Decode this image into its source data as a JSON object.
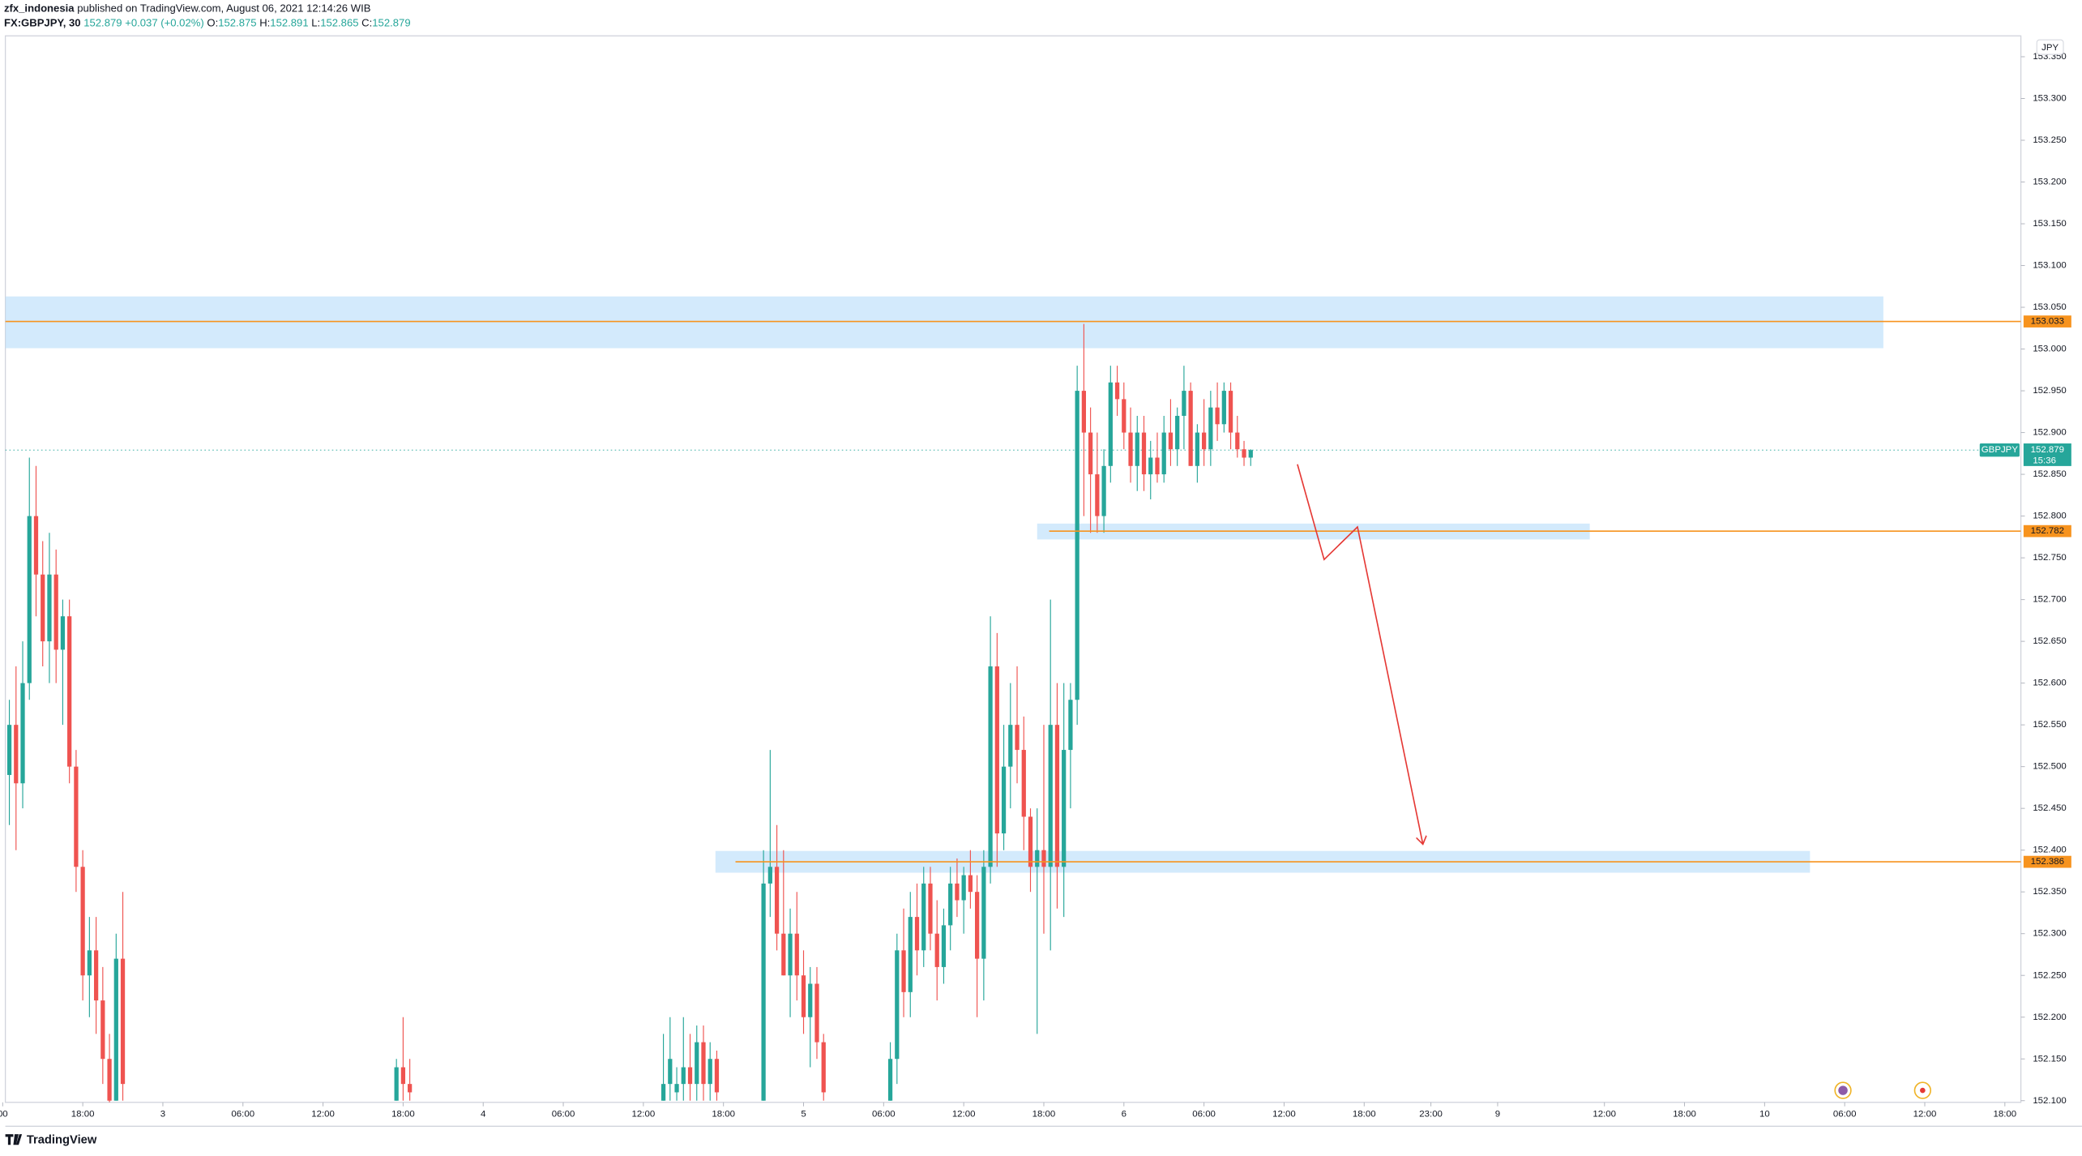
{
  "header": {
    "author": "zfx_indonesia",
    "published": "published on TradingView.com, August 06, 2021 12:14:26 WIB",
    "symbol": "FX:GBPJPY, 30",
    "last": "152.879",
    "change": "+0.037 (+0.02%)",
    "ohlc": [
      {
        "label": "O:",
        "value": "152.875"
      },
      {
        "label": "H:",
        "value": "152.891"
      },
      {
        "label": "L:",
        "value": "152.865"
      },
      {
        "label": "C:",
        "value": "152.879"
      }
    ]
  },
  "footer": {
    "logo": "TradingView"
  },
  "chart_data": {
    "type": "candlestick",
    "currency": "JPY",
    "symbol_label": "GBPJPY",
    "last_price": 152.879,
    "countdown": "15:36",
    "up_color": "#26a69a",
    "down_color": "#ef5350",
    "x": [
      0.5,
      1,
      1.5,
      2,
      2.5,
      3,
      3.5,
      4,
      4.5,
      5,
      5.5,
      6,
      6.5,
      7,
      7.5,
      8,
      8.5,
      9,
      29.5,
      30,
      30.5,
      49.5,
      50,
      50.5,
      51,
      51.5,
      52,
      52.5,
      53,
      53.5,
      57,
      57.5,
      58,
      58.5,
      59,
      59.5,
      60,
      60.5,
      61,
      61.5,
      66.5,
      67,
      67.5,
      68,
      68.5,
      69,
      69.5,
      70,
      70.5,
      71,
      71.5,
      72,
      72.5,
      73,
      73.5,
      74,
      74.5,
      75,
      75.5,
      76,
      76.5,
      77,
      77.5,
      78,
      78.5,
      79,
      79.5,
      80,
      80.5,
      81,
      81.5,
      82,
      82.5,
      83,
      83.5,
      84,
      84.5,
      85,
      85.5,
      86,
      86.5,
      87,
      87.5,
      88,
      88.5,
      89,
      89.5,
      90,
      90.5,
      91,
      91.5,
      92,
      92.5,
      93,
      93.5
    ],
    "open": [
      152.49,
      152.55,
      152.48,
      152.6,
      152.8,
      152.73,
      152.65,
      152.73,
      152.64,
      152.68,
      152.5,
      152.38,
      152.25,
      152.28,
      152.22,
      152.15,
      152.1,
      152.27,
      152.1,
      152.14,
      152.12,
      152.1,
      152.12,
      152.11,
      152.12,
      152.14,
      152.12,
      152.17,
      152.12,
      152.15,
      152.1,
      152.36,
      152.38,
      152.3,
      152.25,
      152.3,
      152.25,
      152.2,
      152.24,
      152.17,
      152.1,
      152.15,
      152.28,
      152.23,
      152.32,
      152.28,
      152.36,
      152.3,
      152.26,
      152.31,
      152.36,
      152.34,
      152.37,
      152.35,
      152.27,
      152.38,
      152.62,
      152.42,
      152.5,
      152.55,
      152.52,
      152.44,
      152.38,
      152.4,
      152.38,
      152.55,
      152.38,
      152.52,
      152.58,
      152.95,
      152.9,
      152.85,
      152.8,
      152.86,
      152.96,
      152.94,
      152.9,
      152.86,
      152.9,
      152.85,
      152.87,
      152.85,
      152.9,
      152.88,
      152.92,
      152.95,
      152.86,
      152.9,
      152.88,
      152.93,
      152.91,
      152.95,
      152.9,
      152.88,
      152.87
    ],
    "high": [
      152.58,
      152.62,
      152.65,
      152.87,
      152.86,
      152.77,
      152.78,
      152.76,
      152.7,
      152.7,
      152.52,
      152.4,
      152.32,
      152.32,
      152.26,
      152.18,
      152.3,
      152.35,
      152.15,
      152.2,
      152.15,
      152.18,
      152.2,
      152.14,
      152.2,
      152.18,
      152.19,
      152.19,
      152.17,
      152.16,
      152.4,
      152.52,
      152.43,
      152.4,
      152.33,
      152.35,
      152.28,
      152.26,
      152.26,
      152.18,
      152.17,
      152.3,
      152.33,
      152.35,
      152.36,
      152.38,
      152.38,
      152.34,
      152.33,
      152.38,
      152.39,
      152.38,
      152.4,
      152.37,
      152.4,
      152.68,
      152.66,
      152.55,
      152.6,
      152.62,
      152.56,
      152.45,
      152.45,
      152.55,
      152.7,
      152.6,
      152.6,
      152.6,
      152.98,
      153.03,
      152.93,
      152.9,
      152.88,
      152.98,
      152.98,
      152.96,
      152.93,
      152.92,
      152.92,
      152.89,
      152.9,
      152.92,
      152.94,
      152.93,
      152.98,
      152.96,
      152.91,
      152.94,
      152.95,
      152.96,
      152.96,
      152.96,
      152.92,
      152.89,
      152.88
    ],
    "low": [
      152.43,
      152.4,
      152.45,
      152.58,
      152.68,
      152.62,
      152.6,
      152.6,
      152.55,
      152.48,
      152.35,
      152.22,
      152.2,
      152.18,
      152.12,
      152.08,
      152.1,
      152.1,
      152.1,
      152.1,
      152.1,
      152.1,
      152.1,
      152.1,
      152.1,
      152.1,
      152.1,
      152.1,
      152.1,
      152.1,
      152.1,
      152.32,
      152.28,
      152.25,
      152.2,
      152.22,
      152.18,
      152.14,
      152.15,
      152.1,
      152.1,
      152.12,
      152.2,
      152.2,
      152.25,
      152.26,
      152.28,
      152.22,
      152.24,
      152.28,
      152.32,
      152.3,
      152.33,
      152.2,
      152.22,
      152.36,
      152.38,
      152.4,
      152.45,
      152.48,
      152.4,
      152.35,
      152.18,
      152.3,
      152.28,
      152.33,
      152.32,
      152.45,
      152.55,
      152.8,
      152.78,
      152.78,
      152.78,
      152.84,
      152.92,
      152.88,
      152.84,
      152.83,
      152.83,
      152.82,
      152.84,
      152.84,
      152.86,
      152.86,
      152.88,
      152.86,
      152.84,
      152.86,
      152.86,
      152.89,
      152.9,
      152.88,
      152.87,
      152.86,
      152.86
    ],
    "close": [
      152.55,
      152.48,
      152.6,
      152.8,
      152.73,
      152.65,
      152.73,
      152.64,
      152.68,
      152.5,
      152.38,
      152.25,
      152.28,
      152.22,
      152.15,
      152.1,
      152.27,
      152.12,
      152.14,
      152.12,
      152.11,
      152.12,
      152.15,
      152.12,
      152.14,
      152.12,
      152.17,
      152.12,
      152.15,
      152.11,
      152.36,
      152.38,
      152.3,
      152.25,
      152.3,
      152.25,
      152.2,
      152.24,
      152.17,
      152.11,
      152.15,
      152.28,
      152.23,
      152.32,
      152.28,
      152.36,
      152.3,
      152.26,
      152.31,
      152.36,
      152.34,
      152.37,
      152.35,
      152.27,
      152.38,
      152.62,
      152.42,
      152.5,
      152.55,
      152.52,
      152.44,
      152.38,
      152.4,
      152.38,
      152.55,
      152.38,
      152.52,
      152.58,
      152.95,
      152.9,
      152.85,
      152.8,
      152.86,
      152.96,
      152.94,
      152.9,
      152.86,
      152.9,
      152.85,
      152.87,
      152.85,
      152.9,
      152.88,
      152.92,
      152.95,
      152.86,
      152.9,
      152.88,
      152.93,
      152.91,
      152.95,
      152.9,
      152.88,
      152.87,
      152.879
    ],
    "xlim": [
      0.2,
      151.2
    ],
    "xticks": [
      {
        "value": 0,
        "label": "00"
      },
      {
        "value": 6,
        "label": "18:00"
      },
      {
        "value": 12,
        "label": "3"
      },
      {
        "value": 18,
        "label": "06:00"
      },
      {
        "value": 24,
        "label": "12:00"
      },
      {
        "value": 30,
        "label": "18:00"
      },
      {
        "value": 36,
        "label": "4"
      },
      {
        "value": 42,
        "label": "06:00"
      },
      {
        "value": 48,
        "label": "12:00"
      },
      {
        "value": 54,
        "label": "18:00"
      },
      {
        "value": 60,
        "label": "5"
      },
      {
        "value": 66,
        "label": "06:00"
      },
      {
        "value": 72,
        "label": "12:00"
      },
      {
        "value": 78,
        "label": "18:00"
      },
      {
        "value": 84,
        "label": "6"
      },
      {
        "value": 90,
        "label": "06:00"
      },
      {
        "value": 96,
        "label": "12:00"
      },
      {
        "value": 102,
        "label": "18:00"
      },
      {
        "value": 107,
        "label": "23:00"
      },
      {
        "value": 112,
        "label": "9"
      },
      {
        "value": 120,
        "label": "12:00"
      },
      {
        "value": 126,
        "label": "18:00"
      },
      {
        "value": 132,
        "label": "10"
      },
      {
        "value": 138,
        "label": "06:00"
      },
      {
        "value": 144,
        "label": "12:00"
      },
      {
        "value": 150,
        "label": "18:00"
      }
    ],
    "ylim": [
      152.098,
      153.375
    ],
    "yticks": [
      {
        "value": 152.1,
        "label": "152.100"
      },
      {
        "value": 152.15,
        "label": "152.150"
      },
      {
        "value": 152.2,
        "label": "152.200"
      },
      {
        "value": 152.25,
        "label": "152.250"
      },
      {
        "value": 152.3,
        "label": "152.300"
      },
      {
        "value": 152.35,
        "label": "152.350"
      },
      {
        "value": 152.4,
        "label": "152.400"
      },
      {
        "value": 152.45,
        "label": "152.450"
      },
      {
        "value": 152.5,
        "label": "152.500"
      },
      {
        "value": 152.55,
        "label": "152.550"
      },
      {
        "value": 152.6,
        "label": "152.600"
      },
      {
        "value": 152.65,
        "label": "152.650"
      },
      {
        "value": 152.7,
        "label": "152.700"
      },
      {
        "value": 152.75,
        "label": "152.750"
      },
      {
        "value": 152.8,
        "label": "152.800"
      },
      {
        "value": 152.85,
        "label": "152.850"
      },
      {
        "value": 152.9,
        "label": "152.900"
      },
      {
        "value": 152.95,
        "label": "152.950"
      },
      {
        "value": 153.0,
        "label": "153.000"
      },
      {
        "value": 153.05,
        "label": "153.050"
      },
      {
        "value": 153.1,
        "label": "153.100"
      },
      {
        "value": 153.15,
        "label": "153.150"
      },
      {
        "value": 153.2,
        "label": "153.200"
      },
      {
        "value": 153.25,
        "label": "153.250"
      },
      {
        "value": 153.3,
        "label": "153.300"
      },
      {
        "value": 153.35,
        "label": "153.350"
      }
    ],
    "zones": [
      {
        "x": [
          0.2,
          140.9
        ],
        "y": [
          153.001,
          153.063
        ],
        "color": "#bbdefb"
      },
      {
        "x": [
          77.5,
          118.9
        ],
        "y": [
          152.772,
          152.791
        ],
        "color": "#bbdefb"
      },
      {
        "x": [
          53.4,
          135.4
        ],
        "y": [
          152.373,
          152.399
        ],
        "color": "#bbdefb"
      }
    ],
    "levels": [
      {
        "value": 153.033,
        "x_start": 0.2,
        "color": "#f7931e"
      },
      {
        "value": 152.782,
        "x_start": 78.4,
        "color": "#f7931e"
      },
      {
        "value": 152.386,
        "x_start": 54.9,
        "color": "#f7931e"
      }
    ],
    "arrow": {
      "x": [
        97.0,
        99.0,
        101.5,
        106.4
      ],
      "y": [
        152.862,
        152.748,
        152.787,
        152.407
      ],
      "color": "#e53935"
    }
  }
}
